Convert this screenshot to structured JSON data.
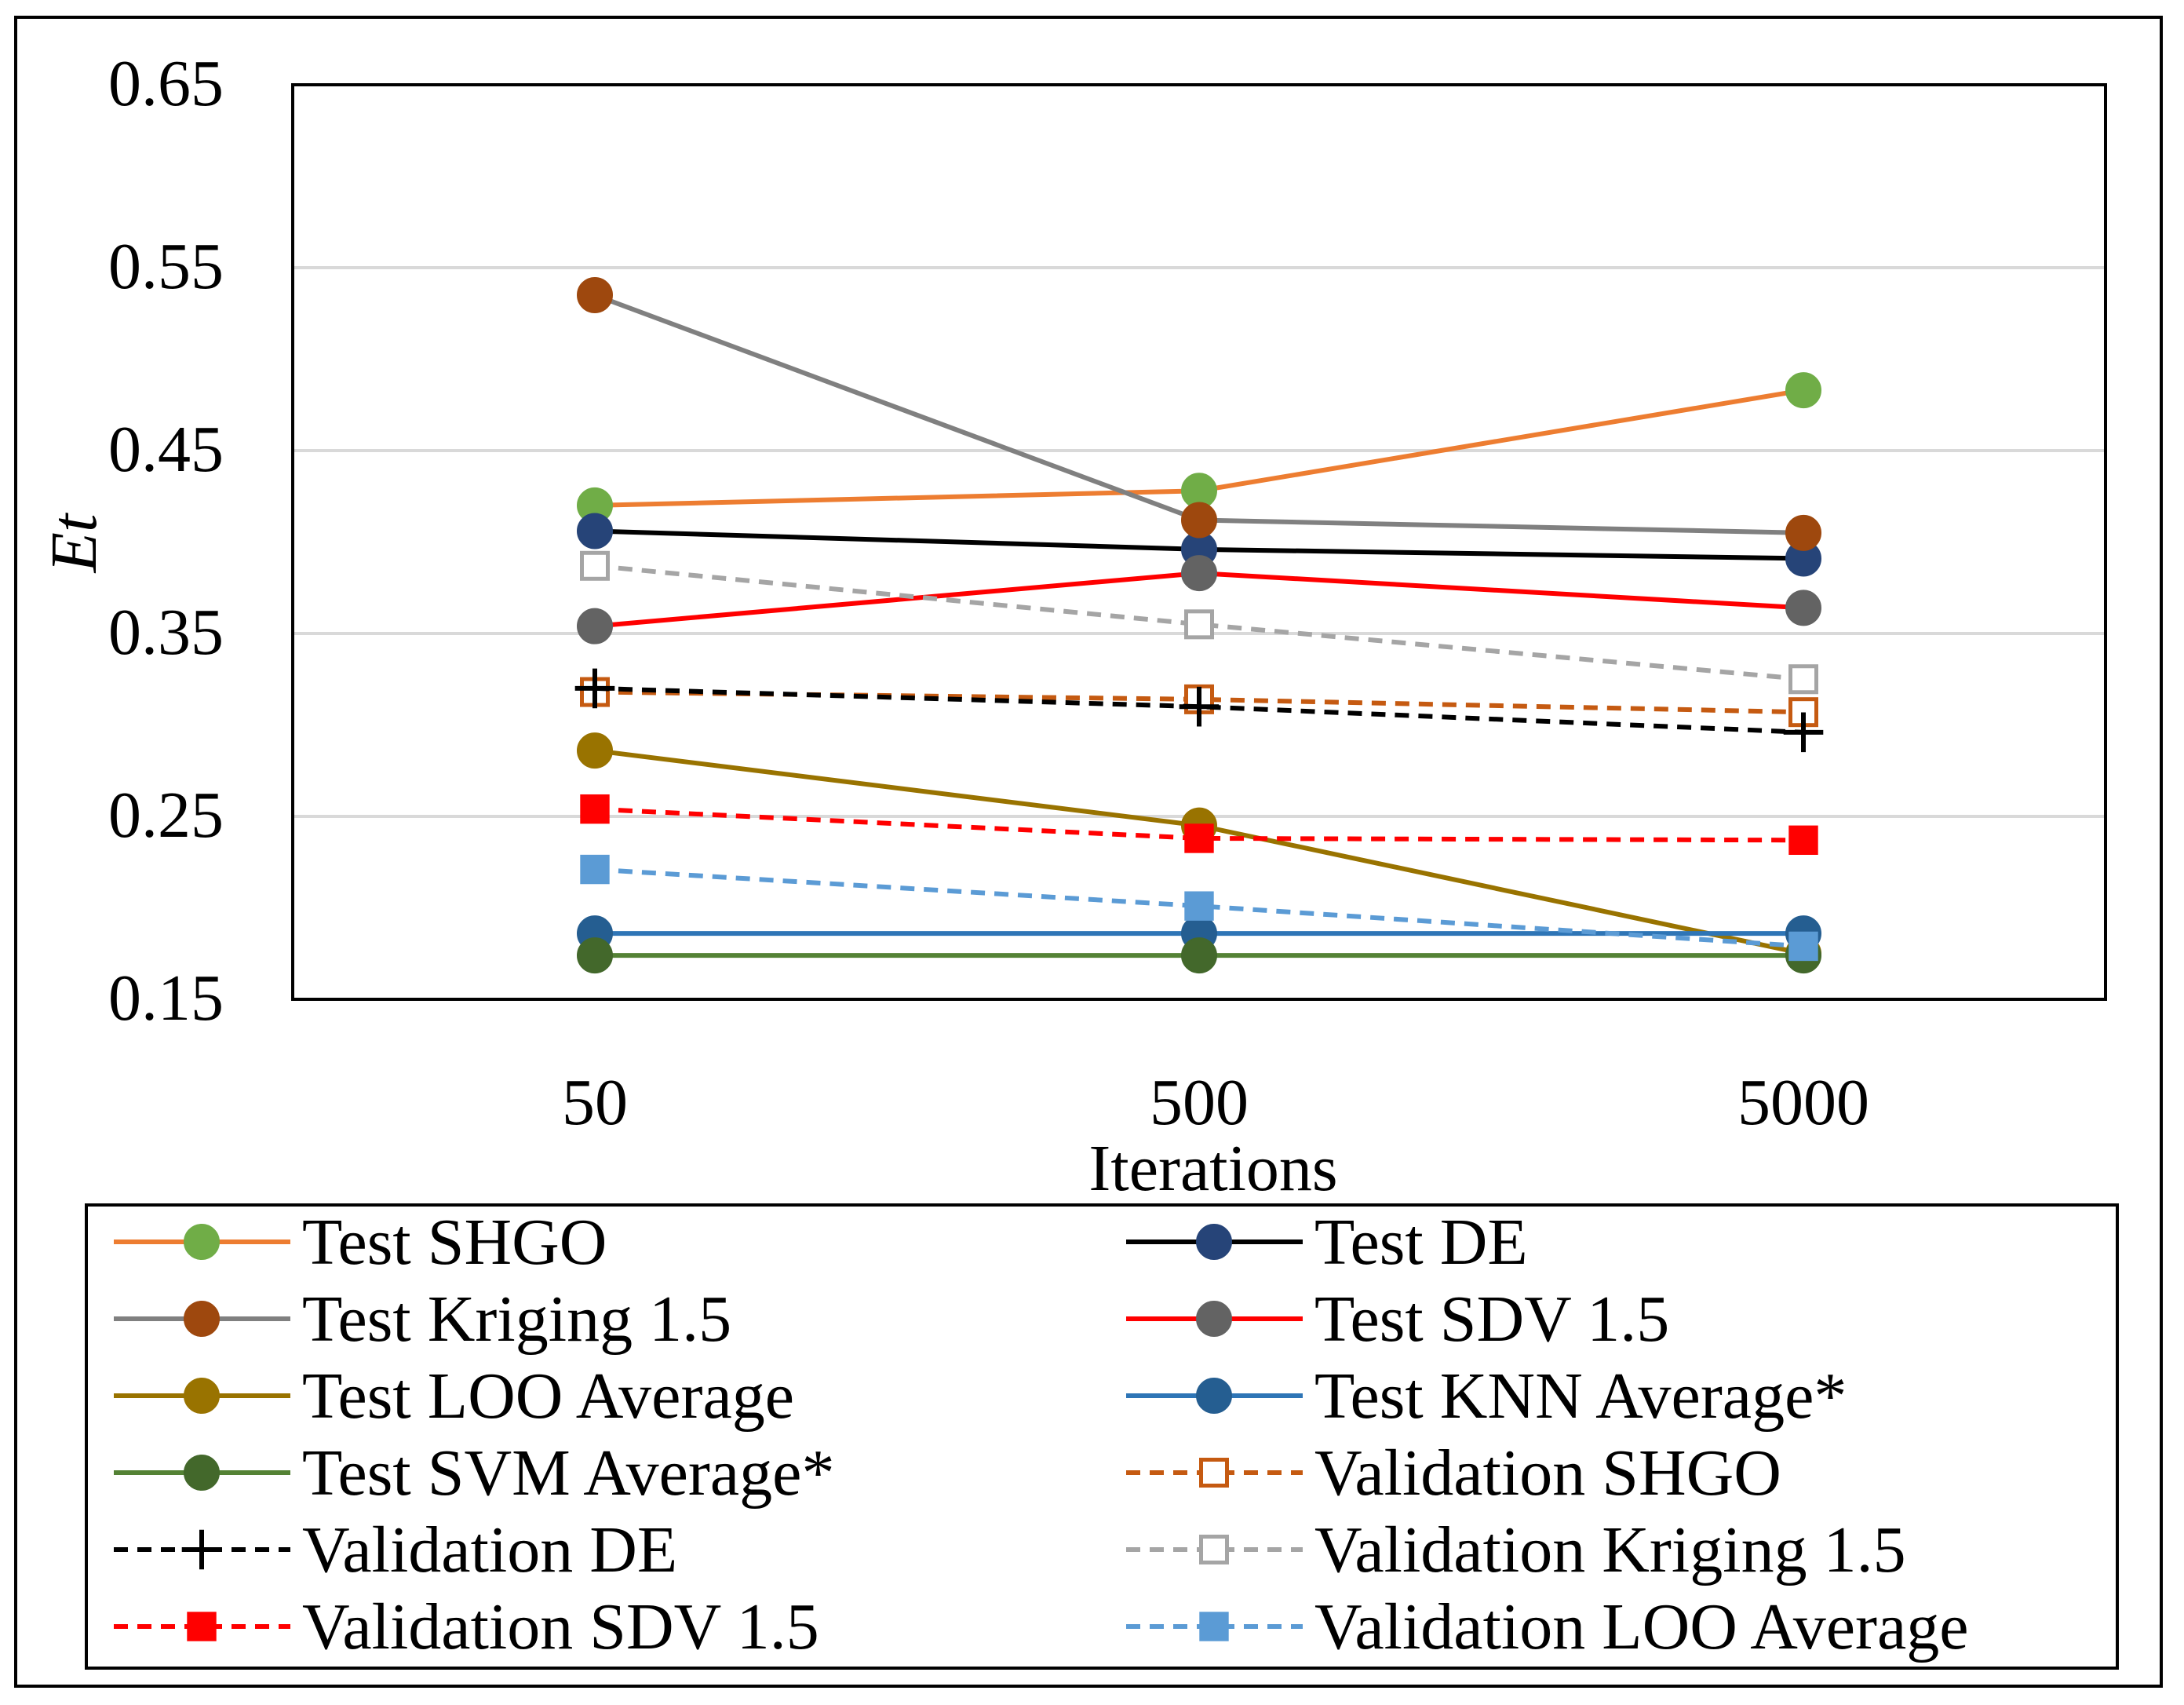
{
  "chart_data": {
    "type": "line",
    "title": "",
    "xlabel": "Iterations",
    "ylabel": "Et",
    "categories": [
      "50",
      "500",
      "5000"
    ],
    "ylim": [
      0.15,
      0.65
    ],
    "yticks": [
      "0.15",
      "0.25",
      "0.35",
      "0.45",
      "0.55",
      "0.65"
    ],
    "grid": "horizontal",
    "legend_position": "bottom",
    "series": [
      {
        "name": "Test SHGO",
        "values": [
          0.42,
          0.428,
          0.483
        ],
        "line_color": "#ED7D31",
        "marker_color": "#70AD47",
        "marker": "circle",
        "dash": "solid"
      },
      {
        "name": "Test DE",
        "values": [
          0.406,
          0.396,
          0.391
        ],
        "line_color": "#000000",
        "marker_color": "#264478",
        "marker": "circle",
        "dash": "solid"
      },
      {
        "name": "Test Kriging 1.5",
        "values": [
          0.535,
          0.412,
          0.405
        ],
        "line_color": "#808080",
        "marker_color": "#9E480E",
        "marker": "circle",
        "dash": "solid"
      },
      {
        "name": "Test SDV 1.5",
        "values": [
          0.354,
          0.383,
          0.364
        ],
        "line_color": "#FF0000",
        "marker_color": "#636363",
        "marker": "circle",
        "dash": "solid"
      },
      {
        "name": "Test LOO Average",
        "values": [
          0.286,
          0.245,
          0.175
        ],
        "line_color": "#997300",
        "marker_color": "#997300",
        "marker": "circle",
        "dash": "solid"
      },
      {
        "name": "Test KNN Average*",
        "values": [
          0.186,
          0.186,
          0.186
        ],
        "line_color": "#2E75B6",
        "marker_color": "#255E91",
        "marker": "circle",
        "dash": "solid"
      },
      {
        "name": "Test SVM Average*",
        "values": [
          0.174,
          0.174,
          0.174
        ],
        "line_color": "#548235",
        "marker_color": "#43682B",
        "marker": "circle",
        "dash": "solid"
      },
      {
        "name": "Validation SHGO",
        "values": [
          0.318,
          0.314,
          0.307
        ],
        "line_color": "#C55A11",
        "marker_color": "#C55A11",
        "marker": "hollow-square",
        "dash": "dashed"
      },
      {
        "name": "Validation DE",
        "values": [
          0.32,
          0.31,
          0.296
        ],
        "line_color": "#000000",
        "marker_color": "#000000",
        "marker": "plus",
        "dash": "dashed"
      },
      {
        "name": "Validation Kriging 1.5",
        "values": [
          0.387,
          0.355,
          0.325
        ],
        "line_color": "#A5A5A5",
        "marker_color": "#A5A5A5",
        "marker": "hollow-square",
        "dash": "dashed"
      },
      {
        "name": "Validation SDV 1.5",
        "values": [
          0.254,
          0.238,
          0.237
        ],
        "line_color": "#FF0000",
        "marker_color": "#FF0000",
        "marker": "square",
        "dash": "dashed"
      },
      {
        "name": "Validation LOO Average",
        "values": [
          0.221,
          0.201,
          0.179
        ],
        "line_color": "#5B9BD5",
        "marker_color": "#5B9BD5",
        "marker": "square",
        "dash": "dashed"
      }
    ]
  }
}
